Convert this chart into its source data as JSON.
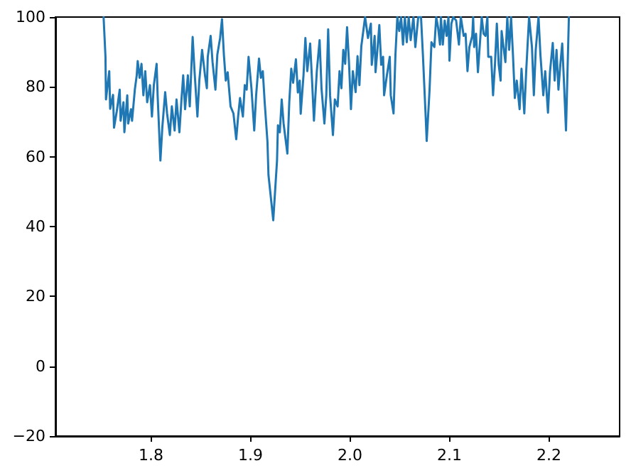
{
  "chart_data": {
    "type": "line",
    "marker": "none",
    "line_style": "solid",
    "xlim": [
      1.704,
      2.271
    ],
    "xticks": [
      1.8,
      1.9,
      {
        "value": 2,
        "label": "2.0"
      },
      2.1,
      2.2
    ],
    "ylim": [
      -20,
      100
    ],
    "yticks": [
      {
        "value": -20,
        "label": "−20"
      },
      0,
      20,
      40,
      60,
      80,
      100
    ],
    "series": [
      {
        "color": "#1f77b4",
        "x": [
          1.7524,
          1.7543,
          1.7548,
          1.7581,
          1.759,
          1.7619,
          1.7629,
          1.7657,
          1.7686,
          1.7695,
          1.7724,
          1.7733,
          1.7762,
          1.7771,
          1.78,
          1.781,
          1.7838,
          1.7857,
          1.7867,
          1.7886,
          1.7905,
          1.7924,
          1.7943,
          1.7962,
          1.799,
          1.801,
          1.8029,
          1.8057,
          1.8067,
          1.8095,
          1.8114,
          1.8143,
          1.8162,
          1.819,
          1.821,
          1.8238,
          1.8257,
          1.8286,
          1.8305,
          1.8324,
          1.8343,
          1.8371,
          1.839,
          1.8419,
          1.8438,
          1.8467,
          1.8486,
          1.8514,
          1.8543,
          1.8562,
          1.8571,
          1.86,
          1.8619,
          1.8648,
          1.8667,
          1.8695,
          1.8714,
          1.8733,
          1.8752,
          1.8771,
          1.88,
          1.8829,
          1.8857,
          1.8876,
          1.8895,
          1.8924,
          1.8943,
          1.8962,
          1.8981,
          1.901,
          1.9038,
          1.9057,
          1.9086,
          1.9105,
          1.9124,
          1.9143,
          1.9171,
          1.9181,
          1.9229,
          1.9267,
          1.9276,
          1.9295,
          1.9314,
          1.9333,
          1.9371,
          1.939,
          1.941,
          1.9429,
          1.9457,
          1.9476,
          1.9495,
          1.9505,
          1.9533,
          1.9552,
          1.9571,
          1.96,
          1.9619,
          1.9638,
          1.9667,
          1.9695,
          1.9714,
          1.9743,
          1.9762,
          1.9781,
          1.98,
          1.9829,
          1.9848,
          1.9876,
          1.9895,
          1.9914,
          1.9933,
          1.9952,
          1.9971,
          1.999,
          2.001,
          2.0029,
          2.0057,
          2.0076,
          2.0095,
          2.0114,
          2.0152,
          2.0181,
          2.021,
          2.0219,
          2.0248,
          2.0257,
          2.0276,
          2.0295,
          2.0314,
          2.0333,
          2.0343,
          2.0371,
          2.04,
          2.041,
          2.0438,
          2.0457,
          2.0476,
          2.0495,
          2.0514,
          2.0533,
          2.0552,
          2.0571,
          2.059,
          2.061,
          2.0638,
          2.0657,
          2.0686,
          2.0714,
          2.0733,
          2.0762,
          2.0771,
          2.08,
          2.0819,
          2.0848,
          2.0867,
          2.0886,
          2.0905,
          2.0914,
          2.0933,
          2.0952,
          2.0971,
          2.099,
          2.1,
          2.1019,
          2.1038,
          2.1067,
          2.1095,
          2.1114,
          2.1143,
          2.1162,
          2.1181,
          2.12,
          2.1229,
          2.1238,
          2.1248,
          2.1267,
          2.1286,
          2.1305,
          2.1324,
          2.1343,
          2.1362,
          2.1381,
          2.139,
          2.1419,
          2.1438,
          2.1457,
          2.1476,
          2.1495,
          2.1514,
          2.1524,
          2.1543,
          2.1562,
          2.1581,
          2.16,
          2.1619,
          2.1638,
          2.1657,
          2.1676,
          2.1705,
          2.1724,
          2.1752,
          2.1771,
          2.18,
          2.1829,
          2.1848,
          2.1867,
          2.1895,
          2.1914,
          2.1943,
          2.1962,
          2.199,
          2.201,
          2.2038,
          2.2057,
          2.2076,
          2.2095,
          2.2114,
          2.2133,
          2.2152,
          2.2171,
          2.219,
          2.22
        ],
        "values": [
          100,
          88.6,
          76.4,
          84.5,
          73.7,
          77.7,
          68.3,
          73.1,
          79.2,
          70.3,
          75.6,
          67,
          77.6,
          69.5,
          73.6,
          70.3,
          79.2,
          83.3,
          87.4,
          82.6,
          86.6,
          77.6,
          84.5,
          75.6,
          80.5,
          71.5,
          80.5,
          86.6,
          77.6,
          58.9,
          68.3,
          78.5,
          72.4,
          66.2,
          74.4,
          67.5,
          76.4,
          67,
          75.6,
          83.3,
          73.6,
          83.3,
          74.4,
          94.3,
          84.5,
          71.5,
          81.8,
          90.6,
          83.3,
          79.6,
          88.6,
          94.6,
          87.1,
          79.2,
          89.2,
          94,
          99.4,
          89.2,
          81.8,
          84.2,
          74.4,
          72.4,
          65,
          71.5,
          76.8,
          71.5,
          80.5,
          79.2,
          88.6,
          79.6,
          67.5,
          77.6,
          88.1,
          82.6,
          84.5,
          75.6,
          64.2,
          54.8,
          41.8,
          58.9,
          69,
          67,
          76.4,
          69.5,
          60.9,
          75.6,
          85.2,
          81.2,
          87.9,
          78.4,
          81.8,
          72.3,
          83.3,
          94,
          84.5,
          92.4,
          81.8,
          70.3,
          84.5,
          93.4,
          79.6,
          69.5,
          77.6,
          96.5,
          77.6,
          66.2,
          76.4,
          74.4,
          84.5,
          79.6,
          90.6,
          86.6,
          97.1,
          87.1,
          73.6,
          84.5,
          78.5,
          88.8,
          80.5,
          91.6,
          100,
          94,
          98.1,
          86.3,
          94.6,
          84.2,
          90.6,
          97.7,
          86.3,
          88.6,
          77.6,
          83.3,
          88.6,
          77.6,
          72.4,
          89.2,
          100,
          96,
          100,
          92.1,
          100,
          92.8,
          100,
          93.4,
          100,
          91.4,
          100,
          100,
          89.2,
          70.8,
          64.5,
          79.2,
          92.8,
          91.4,
          100,
          96.9,
          92.1,
          100,
          92.1,
          99,
          94.6,
          100,
          87.5,
          98.1,
          100,
          99,
          92.1,
          100,
          94.6,
          95.2,
          84.5,
          91.4,
          94.6,
          100,
          91.4,
          95.2,
          84.2,
          92.1,
          100,
          95.2,
          94.6,
          100,
          88.6,
          88.6,
          77.6,
          86.3,
          98.1,
          86.3,
          81.8,
          96,
          91.4,
          87.1,
          100,
          90.6,
          100,
          89.2,
          76.8,
          81.8,
          73.6,
          85.2,
          72.4,
          84.5,
          100,
          91.4,
          77.6,
          90.6,
          100,
          89.2,
          77.6,
          84.5,
          72.6,
          84.2,
          92.6,
          81.8,
          90.6,
          79.2,
          86.3,
          92.4,
          80.5,
          67.5,
          88.6,
          100
        ]
      }
    ]
  }
}
